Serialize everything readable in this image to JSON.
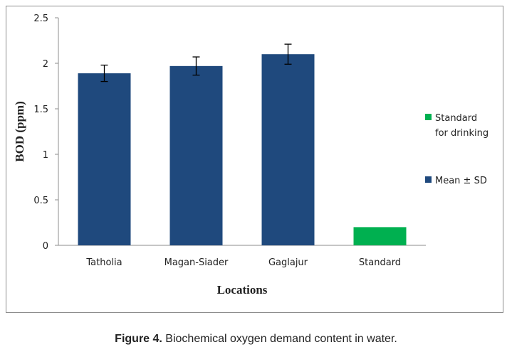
{
  "chart_data": {
    "type": "bar",
    "categories": [
      "Tatholia",
      "Magan-Siader",
      "Gaglajur",
      "Standard"
    ],
    "values": [
      1.89,
      1.97,
      2.1,
      0.2
    ],
    "errors": [
      0.09,
      0.1,
      0.11,
      null
    ],
    "colors": [
      "#1f497d",
      "#1f497d",
      "#1f497d",
      "#00b050"
    ],
    "xlabel": "Locations",
    "ylabel": "BOD (ppm)",
    "ylim": [
      0,
      2.5
    ],
    "yticks": [
      "0",
      "0.5",
      "1",
      "1.5",
      "2",
      "2.5"
    ],
    "legend": [
      {
        "label": "Standard",
        "label2": "for drinking",
        "color": "#00b050"
      },
      {
        "label": "Mean ± SD",
        "color": "#1f497d"
      }
    ],
    "legend_position": "right",
    "grid": false
  },
  "caption": {
    "label": "Figure 4.",
    "text": " Biochemical oxygen demand content in water."
  }
}
